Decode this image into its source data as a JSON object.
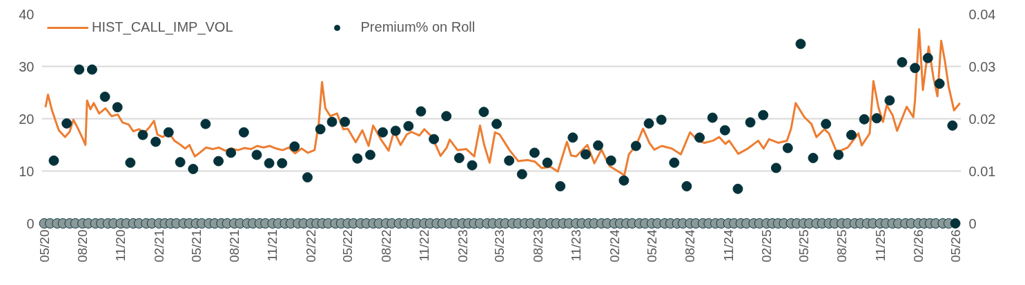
{
  "chart_data": {
    "type": "line",
    "xlim": [
      "2020-04-25",
      "2026-05-15"
    ],
    "xticks": [
      {
        "value": "2020-05-01",
        "label": "05/20"
      },
      {
        "value": "2020-08-01",
        "label": "08/20"
      },
      {
        "value": "2020-11-01",
        "label": "11/20"
      },
      {
        "value": "2021-02-01",
        "label": "02/21"
      },
      {
        "value": "2021-05-01",
        "label": "05/21"
      },
      {
        "value": "2021-08-01",
        "label": "08/21"
      },
      {
        "value": "2021-11-01",
        "label": "11/21"
      },
      {
        "value": "2022-02-01",
        "label": "02/22"
      },
      {
        "value": "2022-05-01",
        "label": "05/22"
      },
      {
        "value": "2022-08-01",
        "label": "08/22"
      },
      {
        "value": "2022-11-01",
        "label": "11/22"
      },
      {
        "value": "2023-02-01",
        "label": "02/23"
      },
      {
        "value": "2023-05-01",
        "label": "05/23"
      },
      {
        "value": "2023-08-01",
        "label": "08/23"
      },
      {
        "value": "2023-11-01",
        "label": "11/23"
      },
      {
        "value": "2024-02-01",
        "label": "02/24"
      },
      {
        "value": "2024-05-01",
        "label": "05/24"
      },
      {
        "value": "2024-08-01",
        "label": "08/24"
      },
      {
        "value": "2024-11-01",
        "label": "11/24"
      },
      {
        "value": "2025-02-01",
        "label": "02/25"
      },
      {
        "value": "2025-05-01",
        "label": "05/25"
      },
      {
        "value": "2025-08-01",
        "label": "08/25"
      },
      {
        "value": "2025-11-01",
        "label": "11/25"
      },
      {
        "value": "2026-02-01",
        "label": "02/26"
      },
      {
        "value": "2026-05-01",
        "label": "05/26"
      }
    ],
    "ylim": [
      0,
      40
    ],
    "yticks": [
      0,
      10,
      20,
      30,
      40
    ],
    "y2lim": [
      0,
      0.04
    ],
    "y2ticks": [
      0,
      0.01,
      0.02,
      0.03,
      0.04
    ],
    "grid": "y",
    "legend": "top left",
    "series": [
      {
        "name": "HIST_CALL_IMP_VOL",
        "color": "#ed7d31",
        "x": [
          "2020-05-04",
          "2020-05-10",
          "2020-05-20",
          "2020-06-05",
          "2020-06-20",
          "2020-07-01",
          "2020-07-10",
          "2020-07-20",
          "2020-08-01",
          "2020-08-08",
          "2020-08-12",
          "2020-08-20",
          "2020-08-28",
          "2020-09-10",
          "2020-09-25",
          "2020-10-10",
          "2020-10-25",
          "2020-11-05",
          "2020-11-20",
          "2020-12-01",
          "2020-12-15",
          "2020-12-28",
          "2021-01-10",
          "2021-01-20",
          "2021-01-28",
          "2021-02-10",
          "2021-02-25",
          "2021-03-10",
          "2021-03-25",
          "2021-04-05",
          "2021-04-15",
          "2021-04-28",
          "2021-05-10",
          "2021-05-25",
          "2021-06-10",
          "2021-06-25",
          "2021-07-10",
          "2021-07-25",
          "2021-08-10",
          "2021-08-25",
          "2021-09-10",
          "2021-09-25",
          "2021-10-10",
          "2021-10-25",
          "2021-11-10",
          "2021-11-25",
          "2021-12-10",
          "2021-12-25",
          "2022-01-10",
          "2022-01-25",
          "2022-02-10",
          "2022-02-20",
          "2022-02-28",
          "2022-03-08",
          "2022-03-20",
          "2022-04-05",
          "2022-04-20",
          "2022-05-01",
          "2022-05-20",
          "2022-06-05",
          "2022-06-20",
          "2022-07-01",
          "2022-07-20",
          "2022-08-07",
          "2022-08-20",
          "2022-09-05",
          "2022-09-20",
          "2022-10-01",
          "2022-10-20",
          "2022-11-01",
          "2022-11-20",
          "2022-12-10",
          "2022-12-25",
          "2023-01-01",
          "2023-01-20",
          "2023-02-10",
          "2023-03-01",
          "2023-03-15",
          "2023-03-25",
          "2023-04-07",
          "2023-04-20",
          "2023-05-01",
          "2023-05-25",
          "2023-06-15",
          "2023-07-07",
          "2023-07-25",
          "2023-08-10",
          "2023-09-01",
          "2023-09-18",
          "2023-10-10",
          "2023-10-20",
          "2023-11-01",
          "2023-11-28",
          "2023-12-15",
          "2024-01-01",
          "2024-01-20",
          "2024-02-03",
          "2024-02-25",
          "2024-03-07",
          "2024-03-25",
          "2024-04-10",
          "2024-04-25",
          "2024-05-07",
          "2024-05-25",
          "2024-06-18",
          "2024-07-10",
          "2024-08-01",
          "2024-08-20",
          "2024-09-05",
          "2024-09-25",
          "2024-10-10",
          "2024-10-25",
          "2024-11-03",
          "2024-11-25",
          "2024-12-18",
          "2025-01-12",
          "2025-01-25",
          "2025-02-07",
          "2025-03-01",
          "2025-03-22",
          "2025-04-01",
          "2025-04-12",
          "2025-05-03",
          "2025-05-20",
          "2025-06-01",
          "2025-06-20",
          "2025-07-01",
          "2025-07-20",
          "2025-08-15",
          "2025-09-10",
          "2025-09-18",
          "2025-10-07",
          "2025-10-16",
          "2025-10-28",
          "2025-11-08",
          "2025-11-17",
          "2025-12-01",
          "2025-12-12",
          "2026-01-04",
          "2026-01-20",
          "2026-01-24",
          "2026-02-03",
          "2026-02-12",
          "2026-02-18",
          "2026-02-26",
          "2026-03-09",
          "2026-03-19",
          "2026-03-28",
          "2026-04-06",
          "2026-04-15",
          "2026-04-28",
          "2026-05-12"
        ],
        "values": [
          22.2,
          24.6,
          21.5,
          17.8,
          16.5,
          17.5,
          19.8,
          18.3,
          16.3,
          15.0,
          23.5,
          21.8,
          23.0,
          21.0,
          22.0,
          20.5,
          20.8,
          19.3,
          18.9,
          17.6,
          18.0,
          17.3,
          18.5,
          19.6,
          17.0,
          16.5,
          17.3,
          15.8,
          15.0,
          14.3,
          15.0,
          12.8,
          13.5,
          14.5,
          14.2,
          14.5,
          13.9,
          14.3,
          14.0,
          14.4,
          14.2,
          14.8,
          14.5,
          14.8,
          14.3,
          14.0,
          14.5,
          13.4,
          14.3,
          13.5,
          14.0,
          19.0,
          27.0,
          22.0,
          20.5,
          21.0,
          18.0,
          18.1,
          15.5,
          17.8,
          14.8,
          18.7,
          16.0,
          13.9,
          17.6,
          15.0,
          17.0,
          17.5,
          16.8,
          18.0,
          16.5,
          12.9,
          14.5,
          16.0,
          14.0,
          14.2,
          12.8,
          18.7,
          15.0,
          11.6,
          17.4,
          17.0,
          14.0,
          11.9,
          12.1,
          11.8,
          10.6,
          10.8,
          9.9,
          15.6,
          13.0,
          12.8,
          15.0,
          11.5,
          14.1,
          11.0,
          10.3,
          9.2,
          13.2,
          15.0,
          18.1,
          15.4,
          14.1,
          14.8,
          14.3,
          13.2,
          17.4,
          15.8,
          15.4,
          15.8,
          16.5,
          15.2,
          15.8,
          13.3,
          14.3,
          15.8,
          14.3,
          16.1,
          15.4,
          15.8,
          18.1,
          23.0,
          20.3,
          19.0,
          16.5,
          18.0,
          17.2,
          13.6,
          14.5,
          17.2,
          14.9,
          17.2,
          27.2,
          22.2,
          19.4,
          22.6,
          20.7,
          17.7,
          22.3,
          20.3,
          23.5,
          37.1,
          25.5,
          29.3,
          33.8,
          28.0,
          24.3,
          34.9,
          31.0,
          26.1,
          21.6,
          23.0
        ]
      },
      {
        "type": "scatter",
        "marker": "circle",
        "axis": "y2",
        "color": "#8c9999",
        "x": [
          "2020-05-01",
          "2020-05-15",
          "2020-06-01",
          "2020-06-15",
          "2020-07-01",
          "2020-07-15",
          "2020-08-01",
          "2020-08-15",
          "2020-09-01",
          "2020-09-15",
          "2020-10-01",
          "2020-10-15",
          "2020-11-01",
          "2020-11-15",
          "2020-12-01",
          "2020-12-15",
          "2021-01-01",
          "2021-01-15",
          "2021-02-01",
          "2021-02-15",
          "2021-03-01",
          "2021-03-15",
          "2021-04-01",
          "2021-04-15",
          "2021-05-01",
          "2021-05-15",
          "2021-06-01",
          "2021-06-15",
          "2021-07-01",
          "2021-07-15",
          "2021-08-01",
          "2021-08-15",
          "2021-09-01",
          "2021-09-15",
          "2021-10-01",
          "2021-10-15",
          "2021-11-01",
          "2021-11-15",
          "2021-12-01",
          "2021-12-15",
          "2022-01-01",
          "2022-01-15",
          "2022-02-01",
          "2022-02-15",
          "2022-03-01",
          "2022-03-15",
          "2022-04-01",
          "2022-04-15",
          "2022-05-01",
          "2022-05-15",
          "2022-06-01",
          "2022-06-15",
          "2022-07-01",
          "2022-07-15",
          "2022-08-01",
          "2022-08-15",
          "2022-09-01",
          "2022-09-15",
          "2022-10-01",
          "2022-10-15",
          "2022-11-01",
          "2022-11-15",
          "2022-12-01",
          "2022-12-15",
          "2023-01-01",
          "2023-01-15",
          "2023-02-01",
          "2023-02-15",
          "2023-03-01",
          "2023-03-15",
          "2023-04-01",
          "2023-04-15",
          "2023-05-01",
          "2023-05-15",
          "2023-06-01",
          "2023-06-15",
          "2023-07-01",
          "2023-07-15",
          "2023-08-01",
          "2023-08-15",
          "2023-09-01",
          "2023-09-15",
          "2023-10-01",
          "2023-10-15",
          "2023-11-01",
          "2023-11-15",
          "2023-12-01",
          "2023-12-15",
          "2024-01-01",
          "2024-01-15",
          "2024-02-01",
          "2024-02-15",
          "2024-03-01",
          "2024-03-15",
          "2024-04-01",
          "2024-04-15",
          "2024-05-01",
          "2024-05-15",
          "2024-06-01",
          "2024-06-15",
          "2024-07-01",
          "2024-07-15",
          "2024-08-01",
          "2024-08-15",
          "2024-09-01",
          "2024-09-15",
          "2024-10-01",
          "2024-10-15",
          "2024-11-01",
          "2024-11-15",
          "2024-12-01",
          "2024-12-15",
          "2025-01-01",
          "2025-01-15",
          "2025-02-01",
          "2025-02-15",
          "2025-03-01",
          "2025-03-15",
          "2025-04-01",
          "2025-04-15",
          "2025-05-01",
          "2025-05-15",
          "2025-06-01",
          "2025-06-15",
          "2025-07-01",
          "2025-07-15",
          "2025-08-01",
          "2025-08-15",
          "2025-09-01",
          "2025-09-15",
          "2025-10-01",
          "2025-10-15",
          "2025-11-01",
          "2025-11-15",
          "2025-12-01",
          "2025-12-15",
          "2026-01-01",
          "2026-01-15",
          "2026-02-01",
          "2026-02-15",
          "2026-03-01",
          "2026-03-15",
          "2026-04-01",
          "2026-04-15"
        ],
        "values": [
          0,
          0,
          0,
          0,
          0,
          0,
          0,
          0,
          0,
          0,
          0,
          0,
          0,
          0,
          0,
          0,
          0,
          0,
          0,
          0,
          0,
          0,
          0,
          0,
          0,
          0,
          0,
          0,
          0,
          0,
          0,
          0,
          0,
          0,
          0,
          0,
          0,
          0,
          0,
          0,
          0,
          0,
          0,
          0,
          0,
          0,
          0,
          0,
          0,
          0,
          0,
          0,
          0,
          0,
          0,
          0,
          0,
          0,
          0,
          0,
          0,
          0,
          0,
          0,
          0,
          0,
          0,
          0,
          0,
          0,
          0,
          0,
          0,
          0,
          0,
          0,
          0,
          0,
          0,
          0,
          0,
          0,
          0,
          0,
          0,
          0,
          0,
          0,
          0,
          0,
          0,
          0,
          0,
          0,
          0,
          0,
          0,
          0,
          0,
          0,
          0,
          0,
          0,
          0,
          0,
          0,
          0,
          0,
          0,
          0,
          0,
          0,
          0,
          0,
          0,
          0,
          0,
          0,
          0,
          0,
          0,
          0,
          0,
          0,
          0,
          0,
          0,
          0,
          0,
          0,
          0,
          0,
          0,
          0,
          0,
          0,
          0,
          0,
          0,
          0,
          0,
          0,
          0,
          0
        ]
      },
      {
        "name": "Premium% on Roll",
        "type": "scatter",
        "marker": "circle",
        "axis": "y2",
        "color": "#05313a",
        "x": [
          "2020-05-24",
          "2020-06-24",
          "2020-07-24",
          "2020-08-24",
          "2020-09-24",
          "2020-10-24",
          "2020-11-24",
          "2020-12-24",
          "2021-01-24",
          "2021-02-24",
          "2021-03-24",
          "2021-04-24",
          "2021-05-24",
          "2021-06-24",
          "2021-07-24",
          "2021-08-24",
          "2021-09-24",
          "2021-10-24",
          "2021-11-24",
          "2021-12-24",
          "2022-01-24",
          "2022-02-24",
          "2022-03-24",
          "2022-04-24",
          "2022-05-24",
          "2022-06-24",
          "2022-07-24",
          "2022-08-24",
          "2022-09-24",
          "2022-10-24",
          "2022-11-24",
          "2022-12-24",
          "2023-01-24",
          "2023-02-24",
          "2023-03-24",
          "2023-04-24",
          "2023-05-24",
          "2023-06-24",
          "2023-07-24",
          "2023-08-24",
          "2023-09-24",
          "2023-10-24",
          "2023-11-24",
          "2023-12-24",
          "2024-01-24",
          "2024-02-24",
          "2024-03-24",
          "2024-04-24",
          "2024-05-24",
          "2024-06-24",
          "2024-07-24",
          "2024-08-24",
          "2024-09-24",
          "2024-10-24",
          "2024-11-24",
          "2024-12-24",
          "2025-01-24",
          "2025-02-24",
          "2025-03-24",
          "2025-04-24",
          "2025-05-24",
          "2025-06-24",
          "2025-07-24",
          "2025-08-24",
          "2025-09-24",
          "2025-10-24",
          "2025-11-24",
          "2025-12-24",
          "2026-01-24",
          "2026-02-24",
          "2026-03-24",
          "2026-04-24",
          "2026-05-01"
        ],
        "values": [
          0.012,
          0.0191,
          0.0294,
          0.0294,
          0.0242,
          0.0222,
          0.0116,
          0.0169,
          0.0156,
          0.0174,
          0.0117,
          0.0104,
          0.019,
          0.0119,
          0.0135,
          0.0174,
          0.0131,
          0.0115,
          0.0115,
          0.0147,
          0.0088,
          0.018,
          0.0194,
          0.0194,
          0.0124,
          0.0131,
          0.0174,
          0.0177,
          0.0186,
          0.0214,
          0.0161,
          0.0205,
          0.0125,
          0.0111,
          0.0213,
          0.019,
          0.012,
          0.0094,
          0.0135,
          0.0116,
          0.0071,
          0.0164,
          0.0132,
          0.0149,
          0.012,
          0.0082,
          0.0148,
          0.0191,
          0.0198,
          0.0116,
          0.0071,
          0.0164,
          0.0202,
          0.0178,
          0.0066,
          0.0193,
          0.0207,
          0.0106,
          0.0144,
          0.0343,
          0.0125,
          0.019,
          0.0131,
          0.0169,
          0.0199,
          0.0201,
          0.0235,
          0.0308,
          0.0297,
          0.0316,
          0.0267,
          0.0187,
          0
        ]
      }
    ]
  }
}
